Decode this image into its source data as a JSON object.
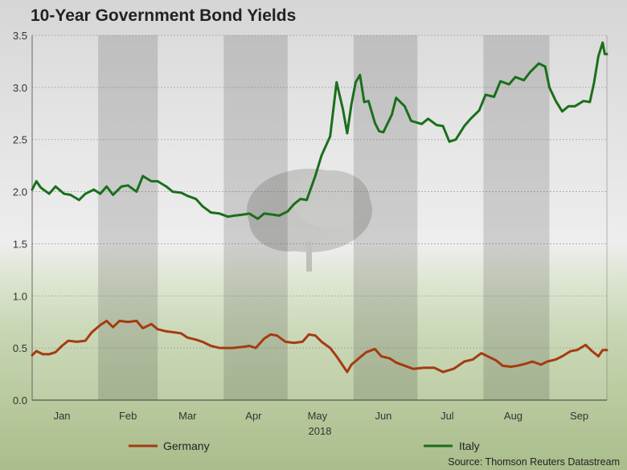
{
  "chart_data": {
    "type": "line",
    "title": "10-Year Government Bond Yields",
    "xlabel": "2018",
    "ylabel": "",
    "ylim": [
      0,
      3.5
    ],
    "yticks": [
      "0.0",
      "0.5",
      "1.0",
      "1.5",
      "2.0",
      "2.5",
      "3.0",
      "3.5"
    ],
    "xlim": [
      "2018-01-01",
      "2018-09-28"
    ],
    "months": [
      "Jan",
      "Feb",
      "Mar",
      "Apr",
      "May",
      "Jun",
      "Jul",
      "Aug",
      "Sep"
    ],
    "grid": true,
    "legend": "bottom",
    "source": "Source: Thomson Reuters Datastream",
    "series": [
      {
        "name": "Germany",
        "color": "#a53b10",
        "points": [
          [
            "2018-01-01",
            0.43
          ],
          [
            "2018-01-03",
            0.47
          ],
          [
            "2018-01-06",
            0.44
          ],
          [
            "2018-01-09",
            0.44
          ],
          [
            "2018-01-12",
            0.46
          ],
          [
            "2018-01-15",
            0.52
          ],
          [
            "2018-01-18",
            0.57
          ],
          [
            "2018-01-22",
            0.56
          ],
          [
            "2018-01-26",
            0.57
          ],
          [
            "2018-01-29",
            0.65
          ],
          [
            "2018-02-02",
            0.72
          ],
          [
            "2018-02-05",
            0.76
          ],
          [
            "2018-02-08",
            0.7
          ],
          [
            "2018-02-11",
            0.76
          ],
          [
            "2018-02-15",
            0.75
          ],
          [
            "2018-02-19",
            0.76
          ],
          [
            "2018-02-22",
            0.69
          ],
          [
            "2018-02-26",
            0.73
          ],
          [
            "2018-03-01",
            0.68
          ],
          [
            "2018-03-05",
            0.66
          ],
          [
            "2018-03-09",
            0.65
          ],
          [
            "2018-03-12",
            0.64
          ],
          [
            "2018-03-15",
            0.6
          ],
          [
            "2018-03-19",
            0.58
          ],
          [
            "2018-03-22",
            0.56
          ],
          [
            "2018-03-26",
            0.52
          ],
          [
            "2018-03-30",
            0.5
          ],
          [
            "2018-04-05",
            0.5
          ],
          [
            "2018-04-10",
            0.51
          ],
          [
            "2018-04-13",
            0.52
          ],
          [
            "2018-04-16",
            0.5
          ],
          [
            "2018-04-20",
            0.59
          ],
          [
            "2018-04-23",
            0.63
          ],
          [
            "2018-04-26",
            0.62
          ],
          [
            "2018-04-30",
            0.56
          ],
          [
            "2018-05-04",
            0.55
          ],
          [
            "2018-05-08",
            0.56
          ],
          [
            "2018-05-11",
            0.63
          ],
          [
            "2018-05-14",
            0.62
          ],
          [
            "2018-05-17",
            0.56
          ],
          [
            "2018-05-21",
            0.5
          ],
          [
            "2018-05-24",
            0.42
          ],
          [
            "2018-05-29",
            0.27
          ],
          [
            "2018-05-31",
            0.34
          ],
          [
            "2018-06-04",
            0.41
          ],
          [
            "2018-06-07",
            0.46
          ],
          [
            "2018-06-11",
            0.49
          ],
          [
            "2018-06-14",
            0.42
          ],
          [
            "2018-06-18",
            0.4
          ],
          [
            "2018-06-21",
            0.36
          ],
          [
            "2018-06-25",
            0.33
          ],
          [
            "2018-06-29",
            0.3
          ],
          [
            "2018-07-04",
            0.31
          ],
          [
            "2018-07-09",
            0.31
          ],
          [
            "2018-07-13",
            0.27
          ],
          [
            "2018-07-18",
            0.3
          ],
          [
            "2018-07-23",
            0.37
          ],
          [
            "2018-07-27",
            0.39
          ],
          [
            "2018-07-31",
            0.45
          ],
          [
            "2018-08-03",
            0.42
          ],
          [
            "2018-08-07",
            0.38
          ],
          [
            "2018-08-10",
            0.33
          ],
          [
            "2018-08-14",
            0.32
          ],
          [
            "2018-08-17",
            0.33
          ],
          [
            "2018-08-21",
            0.35
          ],
          [
            "2018-08-24",
            0.37
          ],
          [
            "2018-08-28",
            0.34
          ],
          [
            "2018-08-31",
            0.37
          ],
          [
            "2018-09-04",
            0.39
          ],
          [
            "2018-09-07",
            0.42
          ],
          [
            "2018-09-11",
            0.47
          ],
          [
            "2018-09-14",
            0.48
          ],
          [
            "2018-09-18",
            0.53
          ],
          [
            "2018-09-21",
            0.47
          ],
          [
            "2018-09-24",
            0.42
          ],
          [
            "2018-09-26",
            0.48
          ],
          [
            "2018-09-28",
            0.48
          ]
        ]
      },
      {
        "name": "Italy",
        "color": "#1a6f1a",
        "points": [
          [
            "2018-01-01",
            2.02
          ],
          [
            "2018-01-03",
            2.1
          ],
          [
            "2018-01-05",
            2.04
          ],
          [
            "2018-01-09",
            1.98
          ],
          [
            "2018-01-12",
            2.05
          ],
          [
            "2018-01-16",
            1.98
          ],
          [
            "2018-01-19",
            1.97
          ],
          [
            "2018-01-23",
            1.92
          ],
          [
            "2018-01-26",
            1.98
          ],
          [
            "2018-01-30",
            2.02
          ],
          [
            "2018-02-02",
            1.98
          ],
          [
            "2018-02-05",
            2.05
          ],
          [
            "2018-02-08",
            1.97
          ],
          [
            "2018-02-12",
            2.05
          ],
          [
            "2018-02-15",
            2.06
          ],
          [
            "2018-02-19",
            2.0
          ],
          [
            "2018-02-22",
            2.15
          ],
          [
            "2018-02-26",
            2.1
          ],
          [
            "2018-03-01",
            2.1
          ],
          [
            "2018-03-05",
            2.05
          ],
          [
            "2018-03-08",
            2.0
          ],
          [
            "2018-03-12",
            1.99
          ],
          [
            "2018-03-15",
            1.96
          ],
          [
            "2018-03-19",
            1.93
          ],
          [
            "2018-03-22",
            1.86
          ],
          [
            "2018-03-26",
            1.8
          ],
          [
            "2018-03-30",
            1.79
          ],
          [
            "2018-04-03",
            1.76
          ],
          [
            "2018-04-06",
            1.77
          ],
          [
            "2018-04-10",
            1.78
          ],
          [
            "2018-04-13",
            1.79
          ],
          [
            "2018-04-17",
            1.74
          ],
          [
            "2018-04-20",
            1.79
          ],
          [
            "2018-04-24",
            1.78
          ],
          [
            "2018-04-27",
            1.77
          ],
          [
            "2018-05-01",
            1.81
          ],
          [
            "2018-05-04",
            1.88
          ],
          [
            "2018-05-07",
            1.93
          ],
          [
            "2018-05-10",
            1.92
          ],
          [
            "2018-05-14",
            2.15
          ],
          [
            "2018-05-17",
            2.35
          ],
          [
            "2018-05-21",
            2.53
          ],
          [
            "2018-05-24",
            3.05
          ],
          [
            "2018-05-27",
            2.79
          ],
          [
            "2018-05-29",
            2.56
          ],
          [
            "2018-05-31",
            2.84
          ],
          [
            "2018-06-02",
            3.05
          ],
          [
            "2018-06-04",
            3.12
          ],
          [
            "2018-06-06",
            2.86
          ],
          [
            "2018-06-08",
            2.87
          ],
          [
            "2018-06-11",
            2.66
          ],
          [
            "2018-06-13",
            2.58
          ],
          [
            "2018-06-15",
            2.57
          ],
          [
            "2018-06-19",
            2.74
          ],
          [
            "2018-06-21",
            2.9
          ],
          [
            "2018-06-25",
            2.82
          ],
          [
            "2018-06-28",
            2.68
          ],
          [
            "2018-07-03",
            2.65
          ],
          [
            "2018-07-06",
            2.7
          ],
          [
            "2018-07-10",
            2.64
          ],
          [
            "2018-07-13",
            2.63
          ],
          [
            "2018-07-16",
            2.48
          ],
          [
            "2018-07-19",
            2.5
          ],
          [
            "2018-07-23",
            2.63
          ],
          [
            "2018-07-26",
            2.7
          ],
          [
            "2018-07-30",
            2.78
          ],
          [
            "2018-08-02",
            2.93
          ],
          [
            "2018-08-06",
            2.91
          ],
          [
            "2018-08-09",
            3.06
          ],
          [
            "2018-08-13",
            3.03
          ],
          [
            "2018-08-16",
            3.1
          ],
          [
            "2018-08-20",
            3.07
          ],
          [
            "2018-08-23",
            3.15
          ],
          [
            "2018-08-27",
            3.23
          ],
          [
            "2018-08-30",
            3.2
          ],
          [
            "2018-09-01",
            3.0
          ],
          [
            "2018-09-04",
            2.87
          ],
          [
            "2018-09-07",
            2.77
          ],
          [
            "2018-09-10",
            2.82
          ],
          [
            "2018-09-13",
            2.82
          ],
          [
            "2018-09-17",
            2.87
          ],
          [
            "2018-09-20",
            2.86
          ],
          [
            "2018-09-22",
            3.05
          ],
          [
            "2018-09-24",
            3.3
          ],
          [
            "2018-09-26",
            3.43
          ],
          [
            "2018-09-27",
            3.32
          ],
          [
            "2018-09-28",
            3.32
          ]
        ]
      }
    ]
  }
}
